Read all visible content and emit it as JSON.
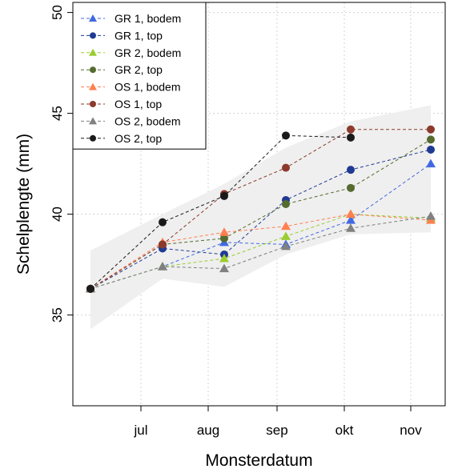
{
  "chart_data": {
    "type": "line",
    "xlabel": "Monsterdatum",
    "ylabel": "Schelplengte (mm)",
    "ylim": [
      30.5,
      50.5
    ],
    "yticks": [
      35,
      40,
      45,
      50
    ],
    "x_categories": [
      "",
      "jul",
      "aug",
      "sep",
      "okt",
      "nov"
    ],
    "grid": true,
    "legend_position": "top-left",
    "band": {
      "x": [
        0,
        1,
        2,
        3,
        4,
        5
      ],
      "upper": [
        38.2,
        40.0,
        41.5,
        43.3,
        44.6,
        45.4
      ],
      "lower": [
        34.3,
        36.8,
        36.4,
        38.0,
        39.0,
        39.1
      ]
    },
    "series": [
      {
        "name": "GR 1, bodem",
        "color": "#4169e1",
        "marker": "triangle",
        "x": [
          0,
          1,
          2,
          3,
          4,
          5
        ],
        "values": [
          36.3,
          37.4,
          38.6,
          38.5,
          39.7,
          42.5
        ]
      },
      {
        "name": "GR 1, top",
        "color": "#1f3a93",
        "marker": "circle",
        "x": [
          0,
          1,
          2,
          3,
          4,
          5
        ],
        "values": [
          36.3,
          38.3,
          38.0,
          40.7,
          42.2,
          43.2
        ]
      },
      {
        "name": "GR 2, bodem",
        "color": "#9acd32",
        "marker": "triangle",
        "x": [
          0,
          1,
          2,
          3,
          4,
          5
        ],
        "values": [
          36.3,
          37.4,
          37.8,
          38.9,
          40.0,
          39.8
        ]
      },
      {
        "name": "GR 2, top",
        "color": "#556b2f",
        "marker": "circle",
        "x": [
          0,
          1,
          2,
          3,
          4,
          5
        ],
        "values": [
          36.3,
          38.5,
          38.8,
          40.5,
          41.3,
          43.7
        ]
      },
      {
        "name": "OS 1, bodem",
        "color": "#ff7f50",
        "marker": "triangle",
        "x": [
          0,
          1,
          2,
          3,
          4,
          5
        ],
        "values": [
          36.3,
          38.6,
          39.1,
          39.4,
          40.0,
          39.7
        ]
      },
      {
        "name": "OS 1, top",
        "color": "#8b3a2b",
        "marker": "circle",
        "x": [
          0,
          1,
          2,
          3,
          4,
          5
        ],
        "values": [
          36.3,
          38.5,
          41.0,
          42.3,
          44.2,
          44.2
        ]
      },
      {
        "name": "OS 2, bodem",
        "color": "#808080",
        "marker": "triangle",
        "x": [
          0,
          1,
          2,
          3,
          4,
          5
        ],
        "values": [
          36.3,
          37.4,
          37.3,
          38.4,
          39.3,
          39.9
        ]
      },
      {
        "name": "OS 2, top",
        "color": "#1a1a1a",
        "marker": "circle",
        "x": [
          0,
          1,
          2,
          3,
          4,
          5
        ],
        "values": [
          36.3,
          39.6,
          40.9,
          43.9,
          43.8,
          null
        ]
      }
    ]
  }
}
